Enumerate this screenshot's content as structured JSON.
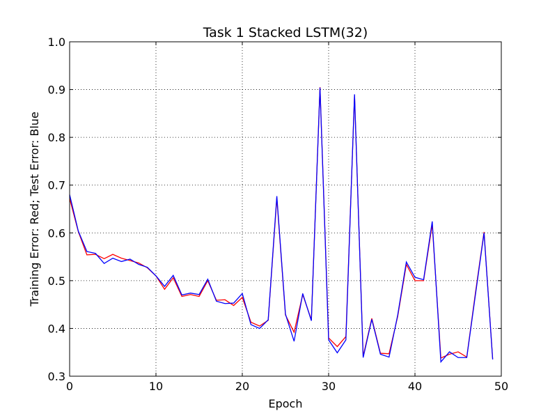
{
  "chart_data": {
    "type": "line",
    "title": "Task 1 Stacked LSTM(32)",
    "xlabel": "Epoch",
    "ylabel": "Training Error: Red; Test Error: Blue",
    "xlim": [
      0,
      50
    ],
    "ylim": [
      0.3,
      1.0
    ],
    "xticks": [
      0,
      10,
      20,
      30,
      40,
      50
    ],
    "xtick_labels": [
      "0",
      "10",
      "20",
      "30",
      "40",
      "50"
    ],
    "yticks": [
      0.3,
      0.4,
      0.5,
      0.6,
      0.7,
      0.8,
      0.9,
      1.0
    ],
    "ytick_labels": [
      "0.3",
      "0.4",
      "0.5",
      "0.6",
      "0.7",
      "0.8",
      "0.9",
      "1.0"
    ],
    "grid": true,
    "legend": "none",
    "x": [
      0,
      1,
      2,
      3,
      4,
      5,
      6,
      7,
      8,
      9,
      10,
      11,
      12,
      13,
      14,
      15,
      16,
      17,
      18,
      19,
      20,
      21,
      22,
      23,
      24,
      25,
      26,
      27,
      28,
      29,
      30,
      31,
      32,
      33,
      34,
      35,
      36,
      37,
      38,
      39,
      40,
      41,
      42,
      43,
      44,
      45,
      46,
      47,
      48,
      49
    ],
    "series": [
      {
        "color": "#ff0000",
        "values": [
          0.672,
          0.603,
          0.554,
          0.555,
          0.546,
          0.555,
          0.547,
          0.542,
          0.537,
          0.527,
          0.51,
          0.482,
          0.506,
          0.467,
          0.471,
          0.467,
          0.5,
          0.459,
          0.46,
          0.448,
          0.465,
          0.413,
          0.405,
          0.417,
          0.673,
          0.428,
          0.392,
          0.471,
          0.418,
          0.905,
          0.38,
          0.362,
          0.383,
          0.888,
          0.342,
          0.421,
          0.348,
          0.347,
          0.425,
          0.534,
          0.5,
          0.5,
          0.618,
          0.338,
          0.346,
          0.351,
          0.34,
          0.474,
          0.602,
          0.336
        ]
      },
      {
        "color": "#0000ff",
        "values": [
          0.68,
          0.604,
          0.561,
          0.557,
          0.536,
          0.547,
          0.54,
          0.545,
          0.534,
          0.528,
          0.51,
          0.488,
          0.511,
          0.47,
          0.474,
          0.471,
          0.503,
          0.457,
          0.452,
          0.453,
          0.473,
          0.408,
          0.4,
          0.418,
          0.677,
          0.43,
          0.373,
          0.473,
          0.416,
          0.904,
          0.376,
          0.349,
          0.376,
          0.89,
          0.339,
          0.419,
          0.346,
          0.34,
          0.428,
          0.539,
          0.507,
          0.502,
          0.624,
          0.33,
          0.351,
          0.339,
          0.339,
          0.47,
          0.6,
          0.335
        ]
      }
    ]
  }
}
